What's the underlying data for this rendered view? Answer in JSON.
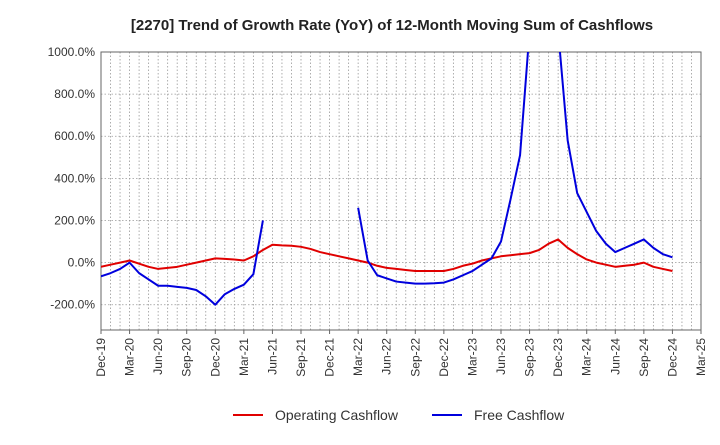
{
  "chart_data": {
    "type": "line",
    "title": "[2270]  Trend of Growth Rate (YoY) of 12-Month Moving Sum of Cashflows",
    "xlabel": "",
    "ylabel": "",
    "y_unit": "%",
    "ylim": [
      -320,
      1000
    ],
    "y_ticks": [
      -200,
      0,
      200,
      400,
      600,
      800,
      1000
    ],
    "y_tick_labels": [
      "-200.0%",
      "0.0%",
      "200.0%",
      "400.0%",
      "600.0%",
      "800.0%",
      "1000.0%"
    ],
    "x_ticks": [
      "Dec-19",
      "Mar-20",
      "Jun-20",
      "Sep-20",
      "Dec-20",
      "Mar-21",
      "Jun-21",
      "Sep-21",
      "Dec-21",
      "Mar-22",
      "Jun-22",
      "Sep-22",
      "Dec-22",
      "Mar-23",
      "Jun-23",
      "Sep-23",
      "Dec-23",
      "Mar-24",
      "Jun-24",
      "Sep-24",
      "Dec-24",
      "Mar-25"
    ],
    "grid": true,
    "legend_position": "bottom",
    "x": [
      "Dec-19",
      "Jan-20",
      "Feb-20",
      "Mar-20",
      "Apr-20",
      "May-20",
      "Jun-20",
      "Jul-20",
      "Aug-20",
      "Sep-20",
      "Oct-20",
      "Nov-20",
      "Dec-20",
      "Jan-21",
      "Feb-21",
      "Mar-21",
      "Apr-21",
      "May-21",
      "Jun-21",
      "Jul-21",
      "Aug-21",
      "Sep-21",
      "Oct-21",
      "Nov-21",
      "Dec-21",
      "Jan-22",
      "Feb-22",
      "Mar-22",
      "Apr-22",
      "May-22",
      "Jun-22",
      "Jul-22",
      "Aug-22",
      "Sep-22",
      "Oct-22",
      "Nov-22",
      "Dec-22",
      "Jan-23",
      "Feb-23",
      "Mar-23",
      "Apr-23",
      "May-23",
      "Jun-23",
      "Jul-23",
      "Aug-23",
      "Sep-23",
      "Oct-23",
      "Nov-23",
      "Dec-23",
      "Jan-24",
      "Feb-24",
      "Mar-24",
      "Apr-24",
      "May-24",
      "Jun-24",
      "Jul-24",
      "Aug-24",
      "Sep-24",
      "Oct-24",
      "Nov-24",
      "Dec-24"
    ],
    "series": [
      {
        "name": "Operating Cashflow",
        "color": "#e00000",
        "values": [
          -20,
          -10,
          0,
          10,
          -5,
          -20,
          -30,
          -25,
          -20,
          -10,
          0,
          10,
          20,
          18,
          15,
          10,
          30,
          60,
          85,
          82,
          80,
          75,
          65,
          50,
          40,
          30,
          20,
          10,
          0,
          -15,
          -25,
          -30,
          -35,
          -40,
          -40,
          -40,
          -40,
          -30,
          -15,
          -5,
          10,
          20,
          30,
          35,
          40,
          45,
          60,
          90,
          110,
          70,
          40,
          15,
          0,
          -10,
          -20,
          -15,
          -10,
          0,
          -20,
          -30,
          -40
        ]
      },
      {
        "name": "Free Cashflow",
        "color": "#0000dd",
        "values": [
          -65,
          -50,
          -30,
          0,
          -50,
          -80,
          -110,
          -110,
          -115,
          -120,
          -130,
          -160,
          -200,
          -150,
          -125,
          -105,
          -55,
          200,
          null,
          null,
          null,
          null,
          null,
          null,
          null,
          null,
          null,
          null,
          null,
          null,
          null,
          null,
          null,
          null,
          null,
          null,
          null,
          null,
          null,
          null,
          null,
          null,
          null,
          null,
          null,
          null,
          null,
          null,
          null,
          null,
          null,
          null,
          null,
          null,
          null,
          null,
          null,
          null,
          null,
          null,
          null
        ]
      },
      {
        "name": "Free Cashflow",
        "color": "#0000dd",
        "values": [
          null,
          null,
          null,
          null,
          null,
          null,
          null,
          null,
          null,
          null,
          null,
          null,
          null,
          null,
          null,
          null,
          null,
          null,
          null,
          null,
          null,
          null,
          null,
          null,
          null,
          null,
          null,
          null,
          null,
          null,
          null,
          null,
          null,
          null,
          null,
          null,
          null,
          null,
          null,
          null,
          null,
          null,
          null,
          null,
          null,
          null,
          null,
          null,
          null,
          null,
          null,
          null,
          null,
          null,
          null,
          null,
          null,
          null,
          null,
          null,
          null
        ]
      },
      {
        "name": "Free Cashflow",
        "color": "#0000dd",
        "values": [
          null,
          null,
          null,
          null,
          null,
          null,
          null,
          null,
          null,
          null,
          null,
          null,
          null,
          null,
          null,
          null,
          null,
          null,
          null,
          null,
          null,
          null,
          null,
          null,
          null,
          null,
          null,
          260,
          10,
          -60,
          -75,
          -90,
          -95,
          -100,
          -100,
          -98,
          -95,
          -80,
          -60,
          -40,
          -10,
          20,
          100,
          300,
          510,
          1100,
          null,
          null,
          null,
          null,
          null,
          null,
          null,
          null,
          null,
          null,
          null,
          null,
          null,
          null,
          null
        ]
      },
      {
        "name": "Free Cashflow",
        "color": "#0000dd",
        "values": [
          null,
          null,
          null,
          null,
          null,
          null,
          null,
          null,
          null,
          null,
          null,
          null,
          null,
          null,
          null,
          null,
          null,
          null,
          null,
          null,
          null,
          null,
          null,
          null,
          null,
          null,
          null,
          null,
          null,
          null,
          null,
          null,
          null,
          null,
          null,
          null,
          null,
          null,
          null,
          null,
          null,
          null,
          null,
          null,
          null,
          null,
          null,
          null,
          1100,
          580,
          330,
          240,
          150,
          90,
          50,
          70,
          90,
          110,
          70,
          40,
          25
        ]
      }
    ]
  },
  "legend": {
    "operating_label": "Operating Cashflow",
    "free_label": "Free Cashflow"
  }
}
